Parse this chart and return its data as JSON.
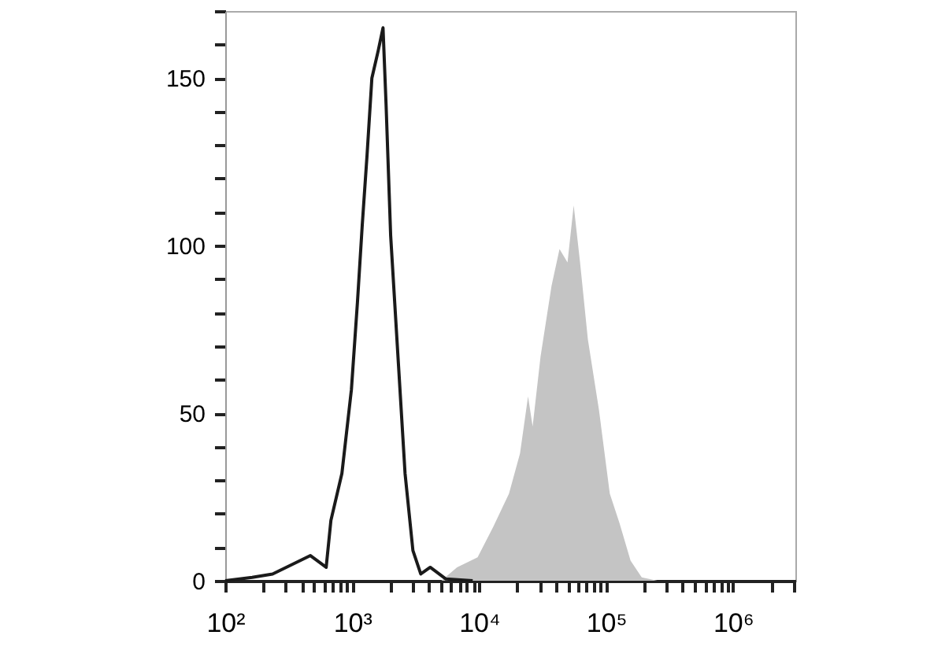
{
  "chart_data": {
    "type": "line",
    "series": [
      {
        "type": "area",
        "color": "#c4c4c4",
        "x": [
          5040,
          6700,
          9730,
          12900,
          17200,
          21000,
          24300,
          26400,
          30500,
          37200,
          43000,
          49700,
          55600,
          62400,
          71900,
          87900,
          107000,
          128000,
          156000,
          191000,
          254000
        ],
        "values": [
          0,
          4,
          7,
          16,
          26,
          38,
          55,
          46,
          67,
          88,
          99,
          95,
          112,
          95,
          72,
          51,
          26,
          17,
          6,
          1,
          0
        ]
      },
      {
        "color": "#1a1a1a",
        "x": [
          100,
          163,
          236,
          469,
          624,
          680,
          830,
          986,
          1100,
          1200,
          1310,
          1430,
          1600,
          1750,
          1850,
          2010,
          2320,
          2610,
          3010,
          3470,
          4120,
          5480,
          8900
        ],
        "values": [
          0,
          1,
          2,
          7.5,
          4,
          18,
          32,
          57,
          83,
          106,
          127,
          150,
          158,
          165,
          142,
          103,
          64,
          32,
          9,
          2,
          4,
          0.5,
          0
        ]
      }
    ],
    "log": "x",
    "xlim": [
      100,
      3100000
    ],
    "xticks": [
      {
        "value": 100,
        "label": "10²"
      },
      {
        "value": 200,
        "label": null
      },
      {
        "value": 300,
        "label": null
      },
      {
        "value": 400,
        "label": null
      },
      {
        "value": 500,
        "label": null
      },
      {
        "value": 600,
        "label": null
      },
      {
        "value": 700,
        "label": null
      },
      {
        "value": 800,
        "label": null
      },
      {
        "value": 900,
        "label": null
      },
      {
        "value": 1000,
        "label": "10³"
      },
      {
        "value": 2000,
        "label": null
      },
      {
        "value": 3000,
        "label": null
      },
      {
        "value": 4000,
        "label": null
      },
      {
        "value": 5000,
        "label": null
      },
      {
        "value": 6000,
        "label": null
      },
      {
        "value": 7000,
        "label": null
      },
      {
        "value": 8000,
        "label": null
      },
      {
        "value": 9000,
        "label": null
      },
      {
        "value": 10000,
        "label": "10⁴"
      },
      {
        "value": 20000,
        "label": null
      },
      {
        "value": 30000,
        "label": null
      },
      {
        "value": 40000,
        "label": null
      },
      {
        "value": 50000,
        "label": null
      },
      {
        "value": 60000,
        "label": null
      },
      {
        "value": 70000,
        "label": null
      },
      {
        "value": 80000,
        "label": null
      },
      {
        "value": 90000,
        "label": null
      },
      {
        "value": 100000,
        "label": "10⁵"
      },
      {
        "value": 200000,
        "label": null
      },
      {
        "value": 300000,
        "label": null
      },
      {
        "value": 400000,
        "label": null
      },
      {
        "value": 500000,
        "label": null
      },
      {
        "value": 600000,
        "label": null
      },
      {
        "value": 700000,
        "label": null
      },
      {
        "value": 800000,
        "label": null
      },
      {
        "value": 900000,
        "label": null
      },
      {
        "value": 1000000,
        "label": "10⁶"
      },
      {
        "value": 2000000,
        "label": null
      },
      {
        "value": 3000000,
        "label": null
      }
    ],
    "ylim": [
      0,
      170
    ],
    "yticks": [
      0,
      {
        "value": 10,
        "label": null
      },
      {
        "value": 20,
        "label": null
      },
      {
        "value": 30,
        "label": null
      },
      {
        "value": 40,
        "label": null
      },
      50,
      {
        "value": 60,
        "label": null
      },
      {
        "value": 70,
        "label": null
      },
      {
        "value": 80,
        "label": null
      },
      {
        "value": 90,
        "label": null
      },
      100,
      {
        "value": 110,
        "label": null
      },
      {
        "value": 120,
        "label": null
      },
      {
        "value": 130,
        "label": null
      },
      {
        "value": 140,
        "label": null
      },
      150,
      {
        "value": 160,
        "label": null
      },
      {
        "value": 170,
        "label": null
      }
    ]
  }
}
